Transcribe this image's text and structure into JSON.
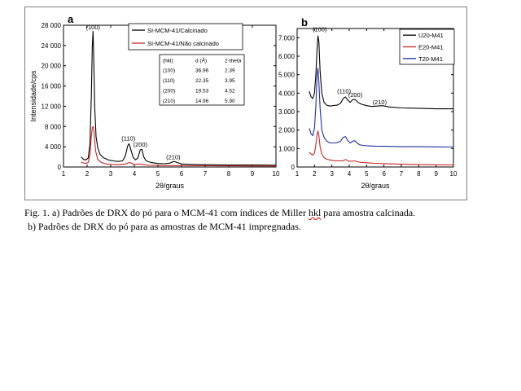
{
  "caption": {
    "line1_prefix": "Fig. 1. a) Padrões de DRX do pó para o MCM-41 com índices de Miller ",
    "line1_hkl": "hkl",
    "line1_suffix": " para amostra calcinada.",
    "line2": "b) Padrões de DRX do pó para as amostras de MCM-41 impregnadas."
  },
  "chart_data": [
    {
      "type": "line",
      "panel_label": "a",
      "xlabel": "2θ/graus",
      "ylabel": "Intensidade/cps",
      "xlim": [
        1,
        10
      ],
      "ylim": [
        0,
        28000
      ],
      "xticks": [
        1,
        2,
        3,
        4,
        5,
        6,
        7,
        8,
        9,
        10
      ],
      "yticks": [
        0,
        4000,
        8000,
        12000,
        16000,
        20000,
        24000,
        28000
      ],
      "ytick_labels": [
        "0",
        "4 000",
        "8 000",
        "12 000",
        "16 000",
        "20 000",
        "24 000",
        "28 000"
      ],
      "legend_position": "top-right",
      "grid": false,
      "series": [
        {
          "name": "SI-MCM-41/Calcinado",
          "color": "#000000",
          "x": [
            1.75,
            1.85,
            1.95,
            2.05,
            2.12,
            2.18,
            2.22,
            2.25,
            2.28,
            2.32,
            2.38,
            2.45,
            2.55,
            2.7,
            2.9,
            3.1,
            3.3,
            3.5,
            3.62,
            3.72,
            3.78,
            3.85,
            3.95,
            4.05,
            4.15,
            4.25,
            4.32,
            4.4,
            4.5,
            4.7,
            5.0,
            5.3,
            5.5,
            5.62,
            5.7,
            5.8,
            6.0,
            6.5,
            7,
            8,
            9,
            10
          ],
          "y": [
            2000,
            1500,
            1400,
            1800,
            4500,
            14000,
            24000,
            26800,
            22000,
            12000,
            6000,
            3800,
            2500,
            1800,
            1400,
            1200,
            1100,
            1200,
            2200,
            4200,
            4600,
            3500,
            1900,
            1400,
            1800,
            3400,
            3500,
            2000,
            1200,
            900,
            700,
            650,
            750,
            1000,
            1100,
            900,
            600,
            500,
            450,
            400,
            380,
            350
          ]
        },
        {
          "name": "SI-MCM-41/Não calcinado",
          "color": "#c62828",
          "x": [
            1.75,
            1.85,
            1.95,
            2.05,
            2.12,
            2.18,
            2.22,
            2.26,
            2.3,
            2.36,
            2.45,
            2.6,
            2.8,
            3.0,
            3.3,
            3.6,
            3.8,
            4.0,
            4.2,
            4.4,
            4.6,
            5.0,
            5.5,
            6,
            7,
            8,
            9,
            10
          ],
          "y": [
            900,
            800,
            700,
            900,
            2500,
            6000,
            7800,
            8000,
            6500,
            3200,
            1500,
            900,
            600,
            500,
            450,
            550,
            900,
            500,
            600,
            450,
            350,
            300,
            280,
            260,
            240,
            220,
            210,
            200
          ]
        }
      ],
      "annotations": [
        {
          "text": "(100)",
          "x": 2.25,
          "y": 27200
        },
        {
          "text": "(110)",
          "x": 3.75,
          "y": 5200
        },
        {
          "text": "(200)",
          "x": 4.25,
          "y": 4000
        },
        {
          "text": "(210)",
          "x": 5.65,
          "y": 1500
        }
      ],
      "table": {
        "headers": [
          "(hkl)",
          "d (Å)",
          "2-theta"
        ],
        "rows": [
          [
            "(100)",
            "36.96",
            "2.39"
          ],
          [
            "(110)",
            "22.35",
            "3.95"
          ],
          [
            "(200)",
            "19.53",
            "4.52"
          ],
          [
            "(210)",
            "14.96",
            "5.90"
          ]
        ]
      }
    },
    {
      "type": "line",
      "panel_label": "b",
      "xlabel": "2θ/graus",
      "ylabel": "",
      "xlim": [
        1,
        10
      ],
      "ylim": [
        0,
        7500
      ],
      "xticks": [
        1,
        2,
        3,
        4,
        5,
        6,
        7,
        8,
        9,
        10
      ],
      "yticks": [
        0,
        1000,
        2000,
        3000,
        4000,
        5000,
        6000,
        7000
      ],
      "ytick_labels": [
        "0",
        "1.000",
        "2.000",
        "3.000",
        "4.000",
        "5.000",
        "6.000",
        "7.000"
      ],
      "legend_position": "top-right",
      "grid": false,
      "series": [
        {
          "name": "U20-M41",
          "color": "#000000",
          "x": [
            1.7,
            1.8,
            1.9,
            2.0,
            2.08,
            2.15,
            2.2,
            2.25,
            2.32,
            2.42,
            2.55,
            2.7,
            2.9,
            3.1,
            3.3,
            3.5,
            3.65,
            3.78,
            3.9,
            4.05,
            4.2,
            4.35,
            4.5,
            4.7,
            5.0,
            5.3,
            5.6,
            5.9,
            6.3,
            7,
            8,
            9,
            10
          ],
          "y": [
            4100,
            3800,
            3700,
            4000,
            5000,
            6400,
            7100,
            6800,
            5200,
            4000,
            3500,
            3350,
            3300,
            3330,
            3350,
            3450,
            3700,
            3800,
            3650,
            3500,
            3650,
            3650,
            3500,
            3400,
            3320,
            3280,
            3300,
            3320,
            3250,
            3200,
            3180,
            3150,
            3150
          ]
        },
        {
          "name": "E20-M41",
          "color": "#c62828",
          "x": [
            1.7,
            1.8,
            1.9,
            2.0,
            2.08,
            2.15,
            2.2,
            2.25,
            2.32,
            2.42,
            2.55,
            2.7,
            2.9,
            3.2,
            3.6,
            3.8,
            4.0,
            4.3,
            4.6,
            5.0,
            5.5,
            6,
            7,
            8,
            9,
            10
          ],
          "y": [
            800,
            700,
            650,
            750,
            1200,
            1750,
            1950,
            1700,
            1100,
            700,
            500,
            420,
            380,
            340,
            330,
            400,
            300,
            330,
            260,
            230,
            200,
            180,
            150,
            130,
            120,
            110
          ]
        },
        {
          "name": "T20-M41",
          "color": "#1f2f9e",
          "x": [
            1.7,
            1.8,
            1.9,
            2.0,
            2.08,
            2.15,
            2.2,
            2.25,
            2.32,
            2.42,
            2.55,
            2.7,
            2.9,
            3.1,
            3.3,
            3.5,
            3.65,
            3.78,
            3.9,
            4.05,
            4.2,
            4.32,
            4.45,
            4.6,
            4.8,
            5.0,
            5.5,
            6,
            7,
            8,
            9,
            10
          ],
          "y": [
            2100,
            1800,
            1700,
            2100,
            3300,
            5000,
            5350,
            4600,
            3200,
            2000,
            1600,
            1400,
            1300,
            1300,
            1320,
            1400,
            1600,
            1650,
            1450,
            1300,
            1400,
            1420,
            1300,
            1200,
            1170,
            1150,
            1130,
            1120,
            1100,
            1100,
            1090,
            1080
          ]
        }
      ],
      "annotations": [
        {
          "text": "(100)",
          "x": 2.3,
          "y": 7350
        },
        {
          "text": "(110)",
          "x": 3.7,
          "y": 4000
        },
        {
          "text": "(200)",
          "x": 4.35,
          "y": 3800
        },
        {
          "text": "(210)",
          "x": 5.75,
          "y": 3400
        }
      ]
    }
  ]
}
